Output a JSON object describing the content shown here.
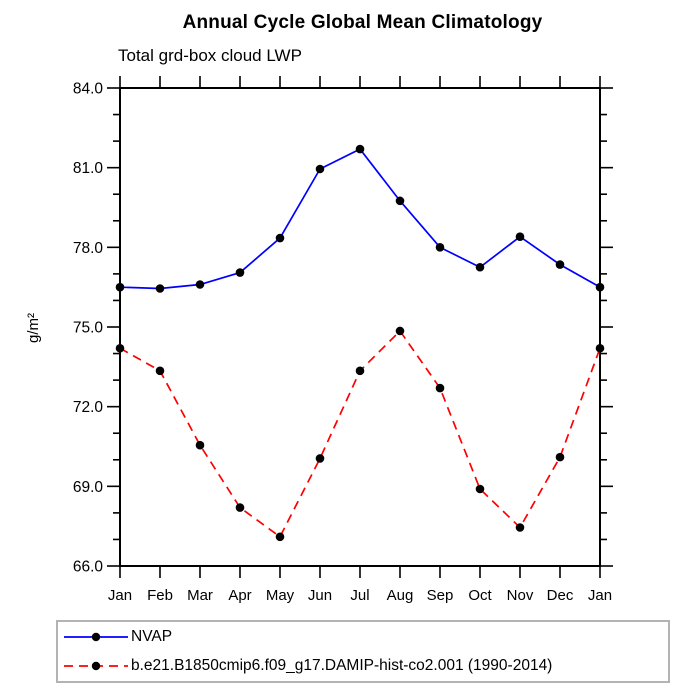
{
  "chart_data": {
    "type": "line",
    "title": "Annual Cycle Global Mean Climatology",
    "subtitle": "Total grd-box cloud LWP",
    "xlabel": "",
    "ylabel": "g/m²",
    "categories": [
      "Jan",
      "Feb",
      "Mar",
      "Apr",
      "May",
      "Jun",
      "Jul",
      "Aug",
      "Sep",
      "Oct",
      "Nov",
      "Dec",
      "Jan"
    ],
    "ylim": [
      66.0,
      84.0
    ],
    "ytick_major": 3.0,
    "ytick_minor": 1.0,
    "ytick_labels": [
      "66.0",
      "69.0",
      "72.0",
      "75.0",
      "78.0",
      "81.0",
      "84.0"
    ],
    "grid": false,
    "legend_position": "bottom-left",
    "series": [
      {
        "name": "NVAP",
        "color": "#0000ff",
        "line_style": "solid",
        "marker": "filled-circle",
        "marker_color": "#000000",
        "values": [
          76.5,
          76.45,
          76.6,
          77.05,
          78.35,
          80.95,
          81.7,
          79.75,
          78.0,
          77.25,
          78.4,
          77.35,
          76.5
        ]
      },
      {
        "name": "b.e21.B1850cmip6.f09_g17.DAMIP-hist-co2.001 (1990-2014)",
        "color": "#ff0000",
        "line_style": "dashed",
        "marker": "filled-circle",
        "marker_color": "#000000",
        "values": [
          74.2,
          73.35,
          70.55,
          68.2,
          67.1,
          70.05,
          73.35,
          74.85,
          72.7,
          68.9,
          67.45,
          70.1,
          74.2
        ]
      }
    ]
  },
  "colors": {
    "axis": "#000000",
    "background": "#ffffff",
    "legend_border": "#b3b3b3"
  }
}
